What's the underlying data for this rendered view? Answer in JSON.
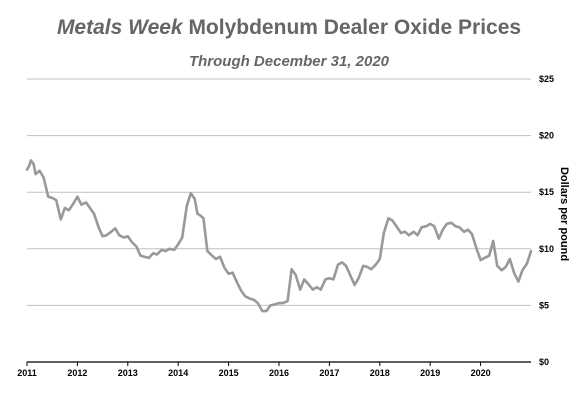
{
  "chart_data": {
    "type": "line",
    "title_italic": "Metals Week",
    "title_rest": " Molybdenum Dealer Oxide Prices",
    "subtitle": "Through December 31, 2020",
    "ylabel": "Dollars per pound",
    "xlabel": "",
    "ylim": [
      0,
      25
    ],
    "xlim": [
      2011,
      2021
    ],
    "grid": "horizontal",
    "legend": "none",
    "line_color": "#999999",
    "grid_color": "#c0c0c0",
    "x_ticks": [
      "2011",
      "2012",
      "2013",
      "2014",
      "2015",
      "2016",
      "2017",
      "2018",
      "2019",
      "2020"
    ],
    "y_ticks": [
      "$0",
      "$5",
      "$10",
      "$15",
      "$20",
      "$25"
    ],
    "series": [
      {
        "x": [
          2011.0,
          2011.04,
          2011.08,
          2011.13,
          2011.17,
          2011.25,
          2011.33,
          2011.42,
          2011.5,
          2011.58,
          2011.67,
          2011.75,
          2011.83,
          2011.92,
          2012.0,
          2012.08,
          2012.17,
          2012.25,
          2012.33,
          2012.42,
          2012.5,
          2012.58,
          2012.67,
          2012.75,
          2012.83,
          2012.92,
          2013.0,
          2013.08,
          2013.17,
          2013.25,
          2013.33,
          2013.42,
          2013.5,
          2013.58,
          2013.67,
          2013.75,
          2013.83,
          2013.92,
          2014.0,
          2014.08,
          2014.17,
          2014.25,
          2014.33,
          2014.38,
          2014.42,
          2014.5,
          2014.58,
          2014.67,
          2014.75,
          2014.83,
          2014.92,
          2015.0,
          2015.08,
          2015.17,
          2015.25,
          2015.33,
          2015.42,
          2015.5,
          2015.58,
          2015.67,
          2015.75,
          2015.83,
          2015.92,
          2016.0,
          2016.08,
          2016.17,
          2016.25,
          2016.33,
          2016.42,
          2016.5,
          2016.58,
          2016.67,
          2016.75,
          2016.83,
          2016.92,
          2017.0,
          2017.08,
          2017.17,
          2017.25,
          2017.33,
          2017.42,
          2017.5,
          2017.58,
          2017.67,
          2017.75,
          2017.83,
          2017.92,
          2018.0,
          2018.08,
          2018.17,
          2018.25,
          2018.33,
          2018.42,
          2018.5,
          2018.58,
          2018.67,
          2018.75,
          2018.83,
          2018.92,
          2019.0,
          2019.08,
          2019.17,
          2019.25,
          2019.33,
          2019.42,
          2019.5,
          2019.58,
          2019.67,
          2019.75,
          2019.83,
          2019.92,
          2020.0,
          2020.08,
          2020.17,
          2020.25,
          2020.33,
          2020.42,
          2020.5,
          2020.58,
          2020.67,
          2020.75,
          2020.83,
          2020.92,
          2021.0
        ],
        "values": [
          17.0,
          17.3,
          17.8,
          17.5,
          16.6,
          16.9,
          16.3,
          14.6,
          14.5,
          14.3,
          12.6,
          13.6,
          13.4,
          14.0,
          14.6,
          13.9,
          14.1,
          13.6,
          13.1,
          11.9,
          11.1,
          11.2,
          11.5,
          11.8,
          11.2,
          11.0,
          11.1,
          10.6,
          10.2,
          9.4,
          9.3,
          9.2,
          9.6,
          9.5,
          9.9,
          9.8,
          10.0,
          9.9,
          10.4,
          11.0,
          13.8,
          14.9,
          14.4,
          13.1,
          13.0,
          12.7,
          9.8,
          9.4,
          9.1,
          9.3,
          8.3,
          7.8,
          7.9,
          7.0,
          6.3,
          5.8,
          5.6,
          5.5,
          5.2,
          4.5,
          4.5,
          5.0,
          5.1,
          5.2,
          5.2,
          5.4,
          8.2,
          7.7,
          6.4,
          7.3,
          6.9,
          6.4,
          6.6,
          6.4,
          7.3,
          7.4,
          7.3,
          8.6,
          8.8,
          8.5,
          7.6,
          6.8,
          7.4,
          8.5,
          8.4,
          8.2,
          8.6,
          9.1,
          11.4,
          12.7,
          12.5,
          12.0,
          11.4,
          11.5,
          11.2,
          11.5,
          11.2,
          11.9,
          12.0,
          12.2,
          12.0,
          10.9,
          11.7,
          12.2,
          12.3,
          12.0,
          11.9,
          11.5,
          11.7,
          11.3,
          10.0,
          9.0,
          9.2,
          9.4,
          10.7,
          8.5,
          8.1,
          8.4,
          9.1,
          7.8,
          7.1,
          8.1,
          8.7,
          9.8
        ]
      }
    ]
  }
}
